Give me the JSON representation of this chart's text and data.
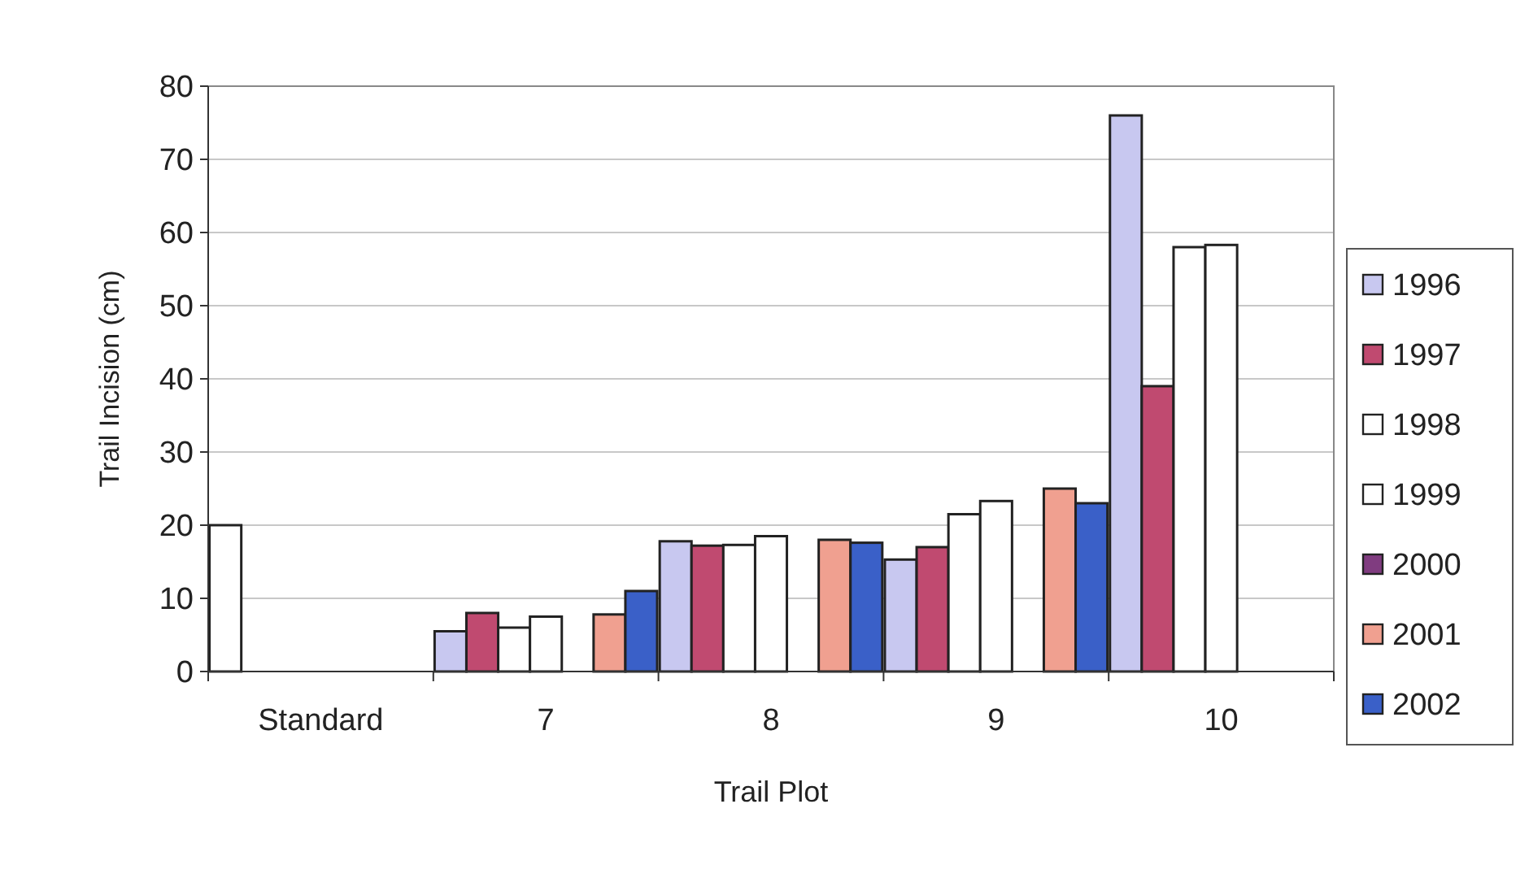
{
  "chart_data": {
    "type": "bar",
    "xlabel": "Trail Plot",
    "ylabel": "Trail Incision (cm)",
    "categories": [
      "Standard",
      "7",
      "8",
      "9",
      "10"
    ],
    "series": [
      {
        "name": "1996",
        "color": "#c8c8f0",
        "colors": [
          "#ffffff",
          "#c8c8f0",
          "#c8c8f0",
          "#c8c8f0",
          "#c8c8f0"
        ],
        "values": [
          20,
          5.5,
          17.8,
          15.3,
          76
        ]
      },
      {
        "name": "1997",
        "color": "#c04a70",
        "values": [
          null,
          8,
          17.2,
          17,
          39
        ]
      },
      {
        "name": "1998",
        "color": "#ffffff",
        "values": [
          null,
          6,
          17.3,
          21.5,
          58
        ]
      },
      {
        "name": "1999",
        "color": "#ffffff",
        "values": [
          null,
          7.5,
          18.5,
          23.3,
          58.3
        ]
      },
      {
        "name": "2000",
        "color": "#803c80",
        "values": [
          null,
          null,
          null,
          null,
          null
        ]
      },
      {
        "name": "2001",
        "color": "#f0a090",
        "values": [
          null,
          7.8,
          18,
          25,
          null
        ]
      },
      {
        "name": "2002",
        "color": "#3a60c8",
        "values": [
          null,
          11,
          17.6,
          23,
          null
        ]
      }
    ],
    "ylim": [
      0,
      80
    ],
    "yticks": [
      0,
      10,
      20,
      30,
      40,
      50,
      60,
      70,
      80
    ],
    "grid": "y",
    "legend": "right"
  }
}
